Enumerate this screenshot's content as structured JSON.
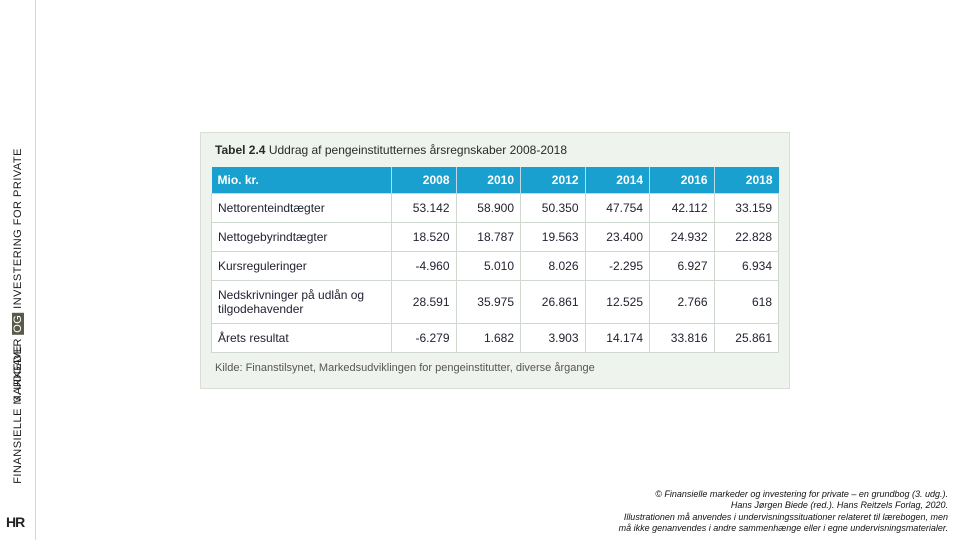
{
  "sidebar": {
    "line1_a": "FINANSIELLE MARKEDER",
    "line1_og": "OG",
    "line1_b": "INVESTERING FOR PRIVATE",
    "line2": "3. UDGAVE",
    "logo": "HR"
  },
  "table": {
    "caption_prefix": "Tabel 2.4",
    "caption": "Uddrag af pengeinstitutternes årsregnskaber 2008-2018",
    "header_label": "Mio. kr.",
    "background_color": "#eff3ed",
    "header_bg": "#1aa0cf",
    "header_fg": "#ffffff",
    "cell_bg": "#ffffff",
    "border_color": "#cfd8cf",
    "font_size": 12,
    "columns": [
      "2008",
      "2010",
      "2012",
      "2014",
      "2016",
      "2018"
    ],
    "rows": [
      {
        "label": "Nettorenteindtægter",
        "values": [
          "53.142",
          "58.900",
          "50.350",
          "47.754",
          "42.112",
          "33.159"
        ]
      },
      {
        "label": "Nettogebyrindtægter",
        "values": [
          "18.520",
          "18.787",
          "19.563",
          "23.400",
          "24.932",
          "22.828"
        ]
      },
      {
        "label": "Kursreguleringer",
        "values": [
          "-4.960",
          "5.010",
          "8.026",
          "-2.295",
          "6.927",
          "6.934"
        ]
      },
      {
        "label": "Nedskrivninger på udlån og tilgodehavender",
        "values": [
          "28.591",
          "35.975",
          "26.861",
          "12.525",
          "2.766",
          "618"
        ]
      },
      {
        "label": "Årets resultat",
        "values": [
          "-6.279",
          "1.682",
          "3.903",
          "14.174",
          "33.816",
          "25.861"
        ]
      }
    ],
    "source": "Kilde: Finanstilsynet, Markedsudviklingen for pengeinstitutter, diverse årgange"
  },
  "footer": {
    "l1": "© Finansielle markeder og investering for private – en grundbog (3. udg.).",
    "l2": "Hans Jørgen Biede (red.). Hans Reitzels Forlag, 2020.",
    "l3": "Illustrationen må anvendes i undervisningssituationer relateret til lærebogen, men",
    "l4": "må ikke genanvendes i andre sammenhænge eller i egne undervisningsmaterialer."
  }
}
